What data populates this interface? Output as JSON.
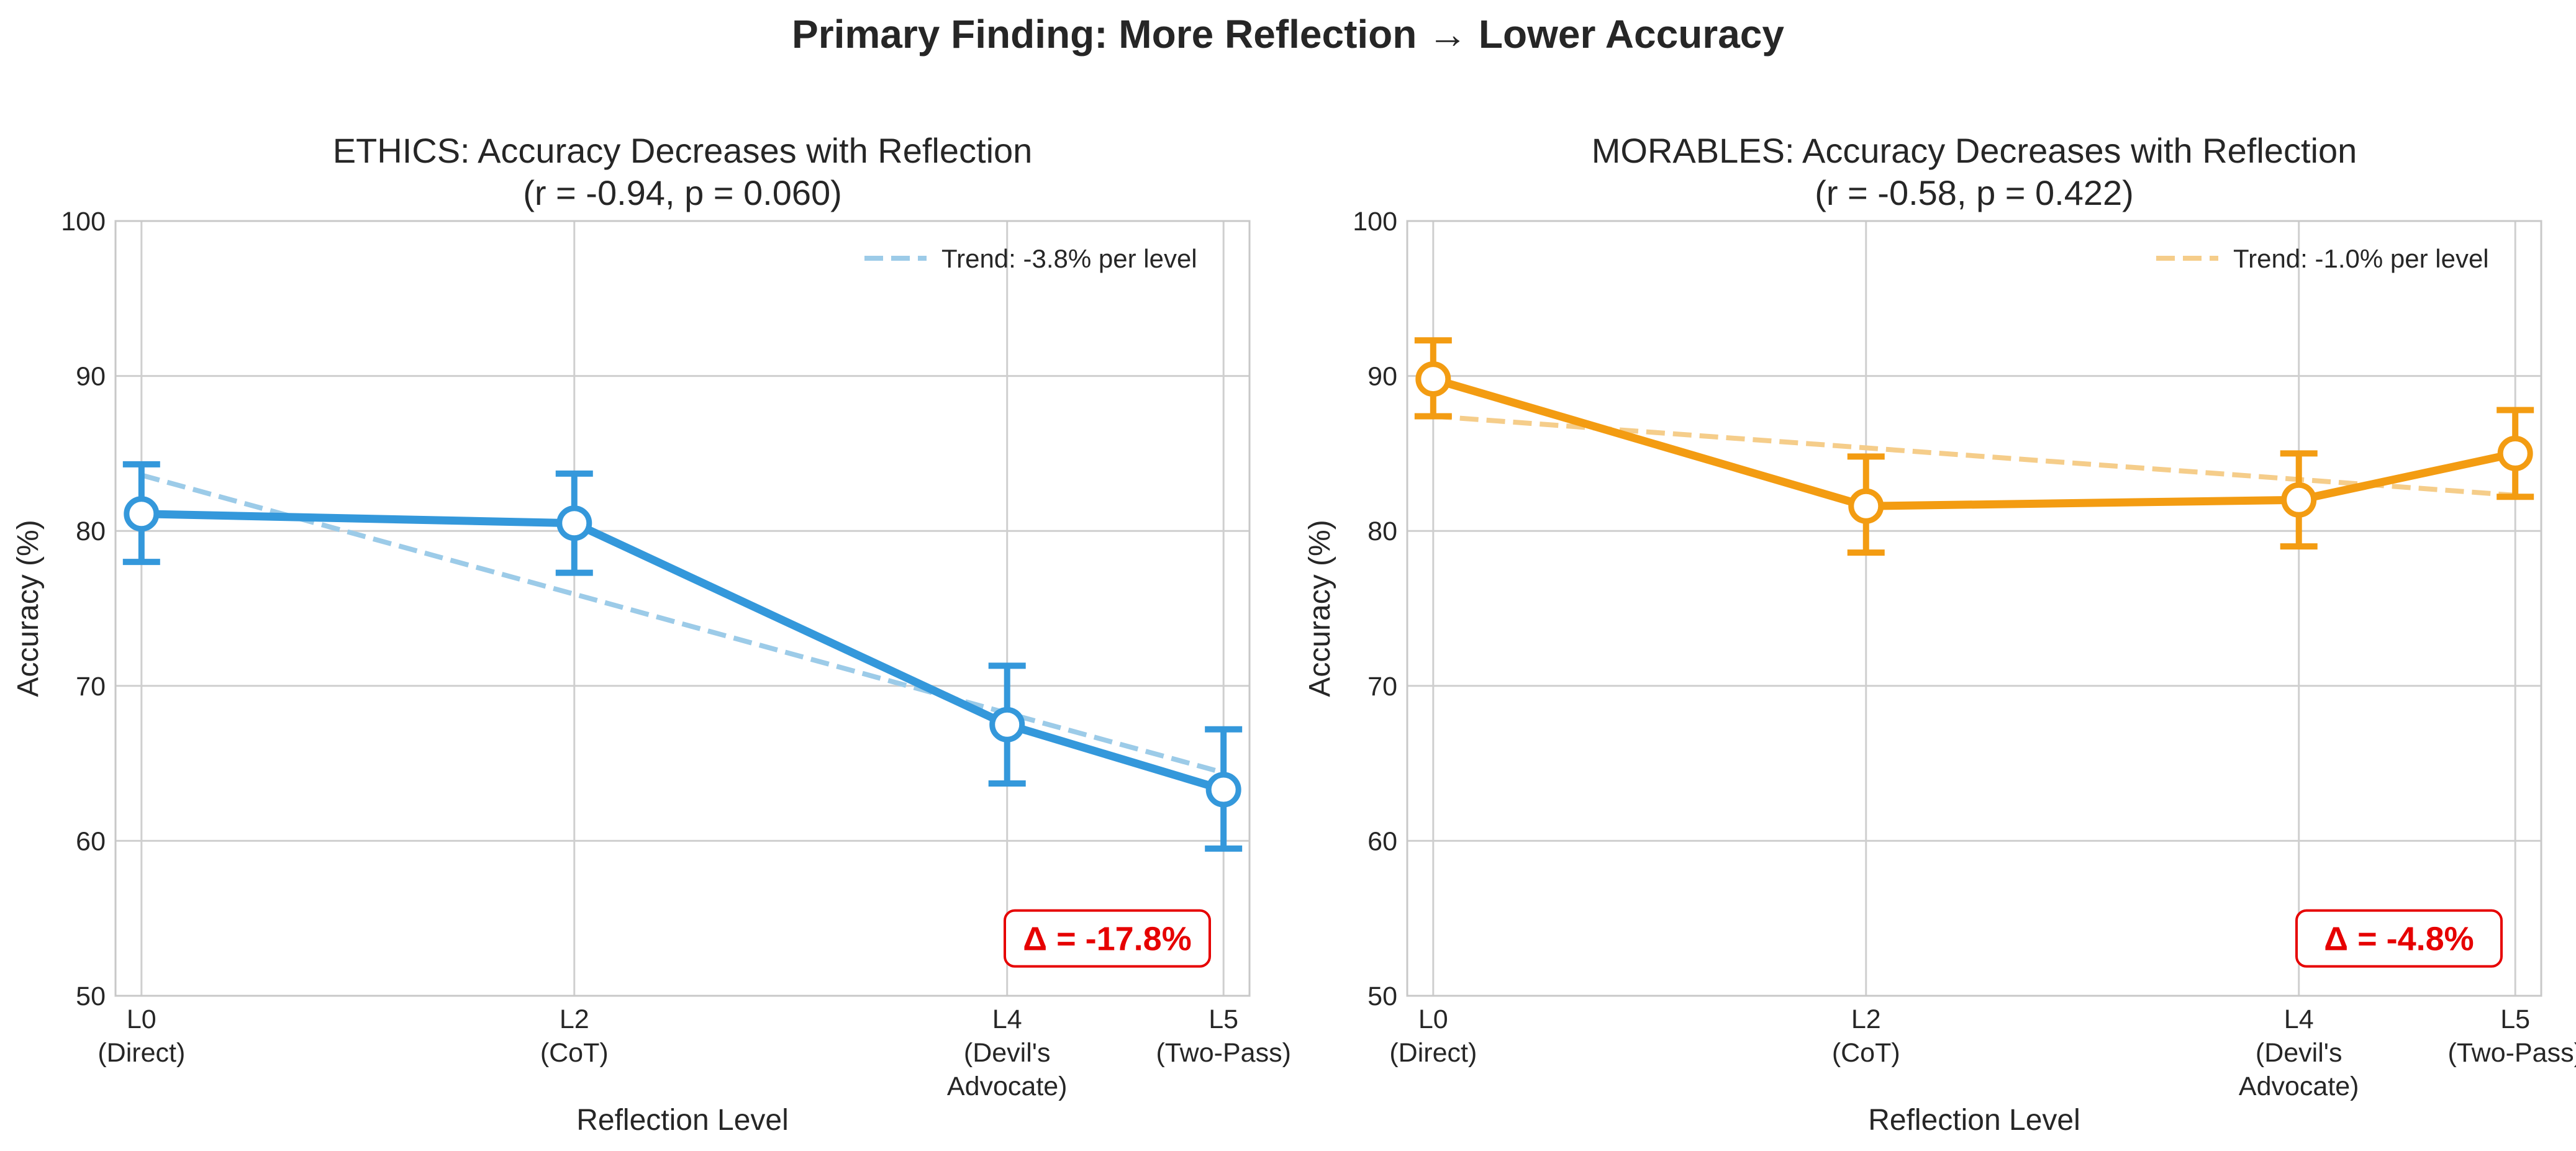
{
  "suptitle": "Primary Finding: More Reflection → Lower Accuracy",
  "chart_data": [
    {
      "type": "line",
      "title_line1": "ETHICS: Accuracy Decreases with Reflection",
      "title_line2": "(r = -0.94, p = 0.060)",
      "xlabel": "Reflection Level",
      "ylabel": "Accuracy (%)",
      "ylim": [
        50,
        100
      ],
      "yticks": [
        50,
        60,
        70,
        80,
        90,
        100
      ],
      "xlim": [
        -0.12,
        5.12
      ],
      "x": [
        0,
        2,
        4,
        5
      ],
      "xtick_labels": [
        [
          "L0",
          "(Direct)"
        ],
        [
          "L2",
          "(CoT)"
        ],
        [
          "L4",
          "(Devil's",
          "Advocate)"
        ],
        [
          "L5",
          "(Two-Pass)"
        ]
      ],
      "values": [
        81.1,
        80.5,
        67.5,
        63.3
      ],
      "error_low": [
        78.0,
        77.3,
        63.7,
        59.5
      ],
      "error_high": [
        84.3,
        83.7,
        71.3,
        67.2
      ],
      "trend": {
        "start": 83.6,
        "end": 64.4,
        "label": "Trend: -3.8% per level"
      },
      "delta_label": "Δ = -17.8%",
      "color": "#3498db",
      "trend_color": "#9ccbe8",
      "grid": true,
      "legend": "top-right"
    },
    {
      "type": "line",
      "title_line1": "MORABLES: Accuracy Decreases with Reflection",
      "title_line2": "(r = -0.58, p = 0.422)",
      "xlabel": "Reflection Level",
      "ylabel": "Accuracy (%)",
      "ylim": [
        50,
        100
      ],
      "yticks": [
        50,
        60,
        70,
        80,
        90,
        100
      ],
      "xlim": [
        -0.12,
        5.12
      ],
      "x": [
        0,
        2,
        4,
        5
      ],
      "xtick_labels": [
        [
          "L0",
          "(Direct)"
        ],
        [
          "L2",
          "(CoT)"
        ],
        [
          "L4",
          "(Devil's",
          "Advocate)"
        ],
        [
          "L5",
          "(Two-Pass)"
        ]
      ],
      "values": [
        89.8,
        81.6,
        82.0,
        85.0
      ],
      "error_low": [
        87.4,
        78.6,
        79.0,
        82.2
      ],
      "error_high": [
        92.3,
        84.8,
        85.0,
        87.8
      ],
      "trend": {
        "start": 87.4,
        "end": 82.3,
        "label": "Trend: -1.0% per level"
      },
      "delta_label": "Δ = -4.8%",
      "color": "#f39c12",
      "trend_color": "#f5cd8a",
      "grid": true,
      "legend": "top-right"
    }
  ],
  "delta_color": "#e60000"
}
